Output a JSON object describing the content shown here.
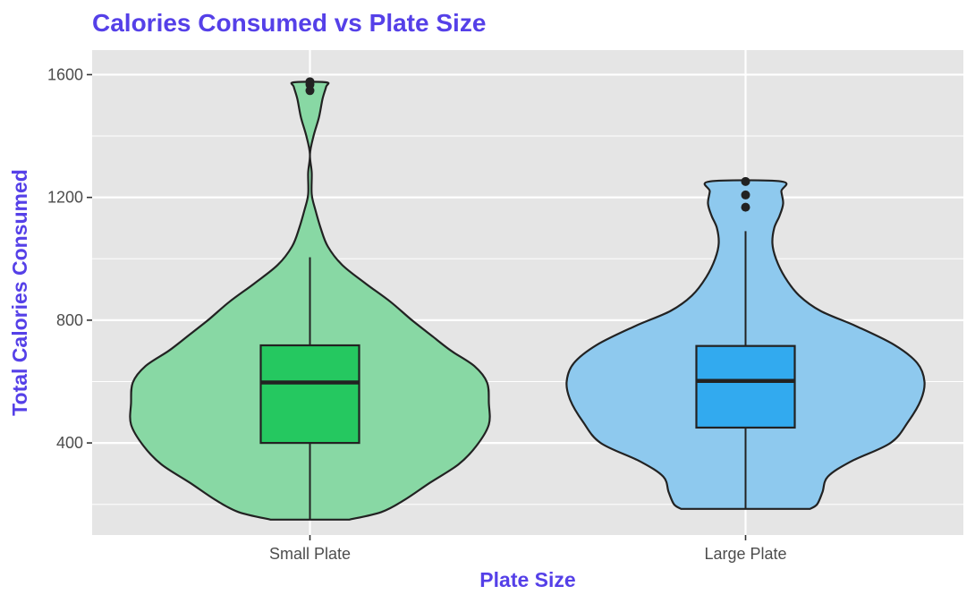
{
  "chart_data": {
    "type": "violin",
    "title": "Calories Consumed vs Plate Size",
    "xlabel": "Plate Size",
    "ylabel": "Total Calories Consumed",
    "categories": [
      "Small Plate",
      "Large Plate"
    ],
    "ylim": [
      100,
      1680
    ],
    "yticks": [
      400,
      800,
      1200,
      1600
    ],
    "grid": true,
    "legend": "none",
    "colors": {
      "title": "#5540e8",
      "panel": "#e5e5e5",
      "grid": "#ffffff",
      "outline": "#222222"
    },
    "series": [
      {
        "category": "Small Plate",
        "violin_color": "#88d8a4",
        "box_color": "#25c860",
        "min_extent": 150,
        "max_extent": 1575,
        "box": {
          "whisker_low": 150,
          "q1": 400,
          "median": 597,
          "q3": 718,
          "whisker_high": 1005
        },
        "outliers": [
          1548,
          1568,
          1577
        ],
        "density_profile": [
          [
            150,
            0.22
          ],
          [
            175,
            0.4
          ],
          [
            215,
            0.53
          ],
          [
            270,
            0.67
          ],
          [
            330,
            0.83
          ],
          [
            390,
            0.93
          ],
          [
            460,
            1.0
          ],
          [
            530,
            1.0
          ],
          [
            597,
            0.99
          ],
          [
            650,
            0.92
          ],
          [
            700,
            0.79
          ],
          [
            745,
            0.69
          ],
          [
            800,
            0.57
          ],
          [
            860,
            0.45
          ],
          [
            920,
            0.31
          ],
          [
            980,
            0.18
          ],
          [
            1040,
            0.1
          ],
          [
            1100,
            0.06
          ],
          [
            1160,
            0.03
          ],
          [
            1210,
            0.01
          ],
          [
            1280,
            0.01
          ],
          [
            1340,
            0.0
          ],
          [
            1400,
            0.02
          ],
          [
            1460,
            0.05
          ],
          [
            1520,
            0.07
          ],
          [
            1560,
            0.09
          ],
          [
            1575,
            0.09
          ]
        ]
      },
      {
        "category": "Large Plate",
        "violin_color": "#8ec9ee",
        "box_color": "#32aaef",
        "min_extent": 185,
        "max_extent": 1252,
        "box": {
          "whisker_low": 185,
          "q1": 450,
          "median": 602,
          "q3": 716,
          "whisker_high": 1090
        },
        "outliers": [
          1168,
          1208,
          1252
        ],
        "density_profile": [
          [
            185,
            0.36
          ],
          [
            200,
            0.4
          ],
          [
            240,
            0.43
          ],
          [
            290,
            0.46
          ],
          [
            340,
            0.59
          ],
          [
            400,
            0.81
          ],
          [
            470,
            0.91
          ],
          [
            540,
            0.98
          ],
          [
            600,
            1.0
          ],
          [
            660,
            0.96
          ],
          [
            720,
            0.83
          ],
          [
            780,
            0.62
          ],
          [
            830,
            0.42
          ],
          [
            880,
            0.3
          ],
          [
            940,
            0.22
          ],
          [
            1000,
            0.17
          ],
          [
            1050,
            0.15
          ],
          [
            1100,
            0.16
          ],
          [
            1140,
            0.19
          ],
          [
            1180,
            0.21
          ],
          [
            1220,
            0.2
          ],
          [
            1252,
            0.2
          ]
        ]
      }
    ]
  }
}
